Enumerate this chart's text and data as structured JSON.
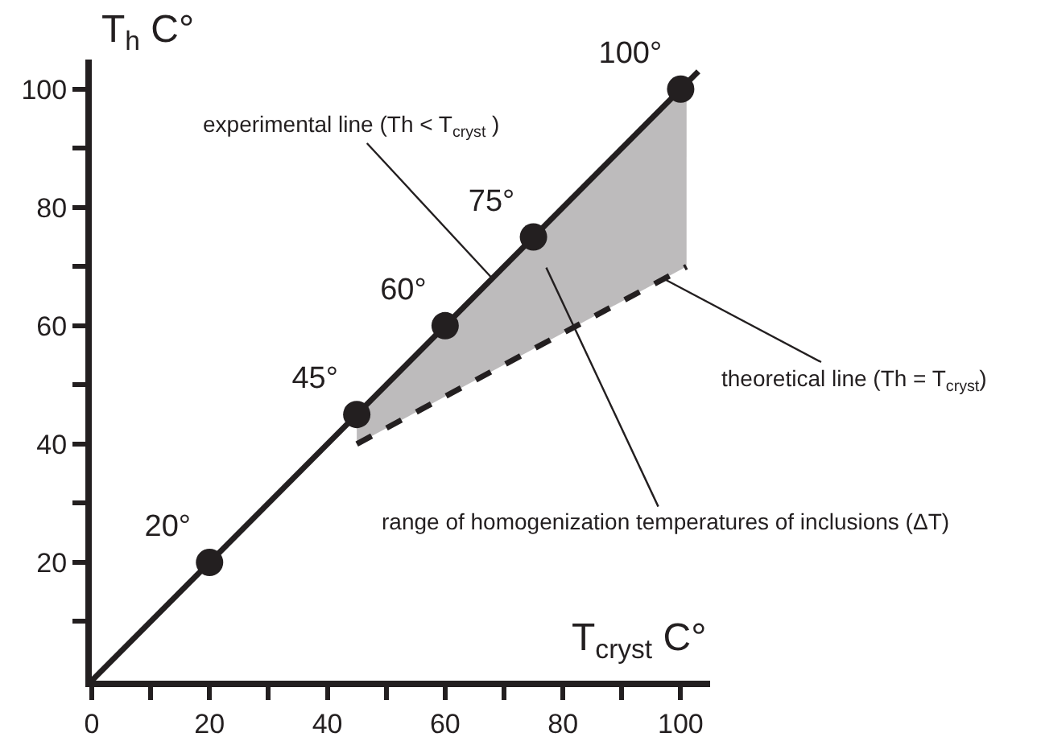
{
  "chart_data": {
    "type": "line",
    "xlabel": "T$_{cryst}$ C°",
    "ylabel": "T$_{h}$ C°",
    "xlim": [
      0,
      105
    ],
    "ylim": [
      0,
      105
    ],
    "xticks": [
      0,
      {
        "value": 10,
        "label": null
      },
      20,
      {
        "value": 30,
        "label": null
      },
      40,
      {
        "value": 50,
        "label": null
      },
      60,
      {
        "value": 70,
        "label": null
      },
      80,
      {
        "value": 90,
        "label": null
      },
      100
    ],
    "yticks": [
      {
        "value": 10,
        "label": null
      },
      20,
      {
        "value": 30,
        "label": null
      },
      40,
      {
        "value": 50,
        "label": null
      },
      60,
      {
        "value": 70,
        "label": null
      },
      80,
      {
        "value": 90,
        "label": null
      },
      100
    ],
    "series": [
      {
        "color": "#231f20",
        "x": [
          0,
          103
        ],
        "values": [
          0,
          103
        ],
        "line_style": "solid",
        "marker": "none"
      },
      {
        "type": "line",
        "color": "#231f20",
        "x": [
          45,
          101
        ],
        "values": [
          40,
          70
        ],
        "line_style": "dashed",
        "marker": "none",
        "lower": [
          40,
          70
        ],
        "upper": [
          45,
          101
        ]
      },
      {
        "type": "scatter",
        "color": "#231f20",
        "x": [
          20,
          45,
          60,
          75,
          100
        ],
        "values": [
          20,
          45,
          60,
          75,
          100
        ],
        "marker": "circle",
        "value_labels": [
          "20°",
          "45°",
          "60°",
          "75°",
          "100°"
        ]
      }
    ],
    "annotations": [
      {
        "text": "experimental line (Th < T$_{cryst}$ )",
        "x": 68,
        "y": 68
      },
      {
        "text": "theoretical line (Th = T$_{cryst}$)",
        "x": 97,
        "y": 68
      },
      "range of homogenization temperatures of inclusions (ΔT)"
    ]
  }
}
